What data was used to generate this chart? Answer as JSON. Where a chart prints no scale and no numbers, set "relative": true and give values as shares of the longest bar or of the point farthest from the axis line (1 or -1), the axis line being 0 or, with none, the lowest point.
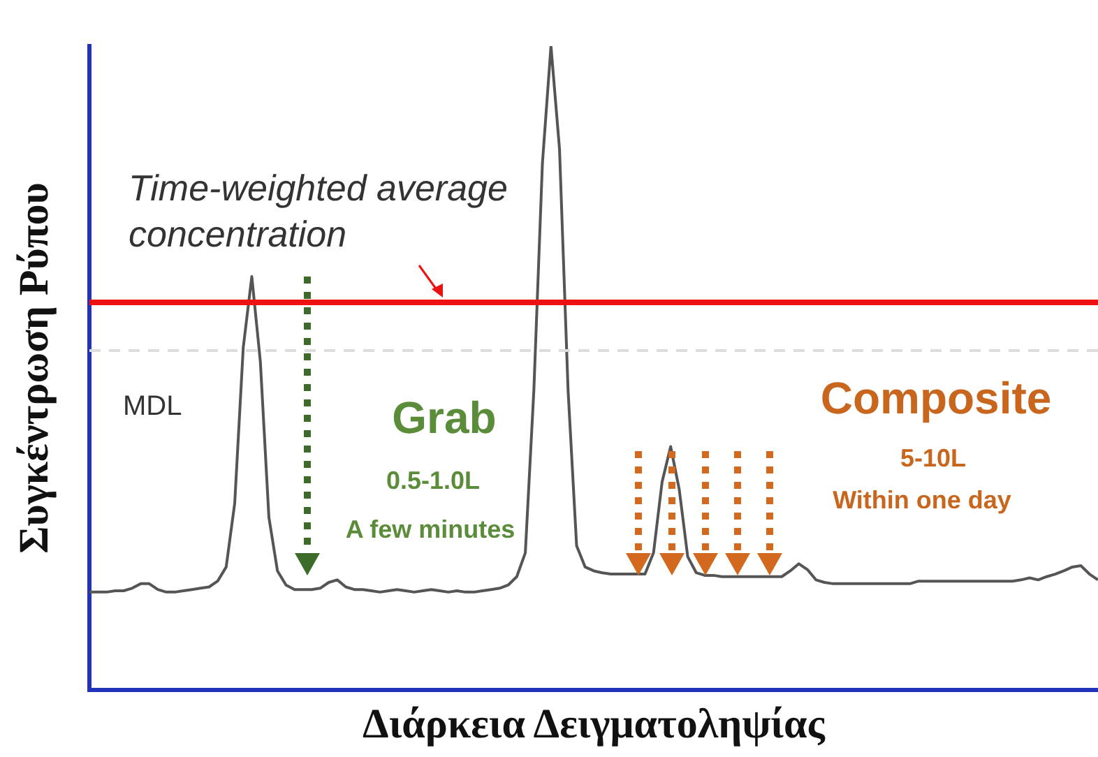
{
  "chart_data": {
    "type": "line",
    "relative": true,
    "xlabel": "Διάρκεια Δειγματοληψίας",
    "ylabel": "Συγκέντρωση Ρύπου",
    "categories": [
      null,
      null,
      null,
      null,
      null,
      null,
      null,
      null,
      null,
      null,
      null,
      null,
      null,
      null,
      null,
      null,
      null,
      null,
      null,
      null,
      null,
      null,
      null,
      null,
      null,
      null,
      null,
      null,
      null,
      null,
      null,
      null,
      null,
      null,
      null,
      null,
      null,
      null,
      null,
      null,
      null,
      null,
      null,
      null,
      null,
      null,
      null,
      null,
      null,
      null,
      null,
      null,
      null,
      null,
      null,
      null,
      null,
      null,
      null,
      null,
      null,
      null,
      null,
      null,
      null,
      null,
      null,
      null,
      null,
      null,
      null,
      null,
      null,
      null,
      null,
      null,
      null,
      null,
      null,
      null,
      null,
      null,
      null,
      null,
      null,
      null,
      null,
      null,
      null,
      null,
      null,
      null,
      null,
      null,
      null,
      null,
      null,
      null,
      null,
      null,
      null,
      null,
      null,
      null,
      null,
      null,
      null,
      null,
      null,
      null,
      null,
      null,
      null,
      null,
      null,
      null,
      null,
      null,
      null
    ],
    "series": [
      {
        "color": "#555555",
        "values": [
          0.152,
          0.152,
          0.152,
          0.154,
          0.154,
          0.158,
          0.165,
          0.165,
          0.156,
          0.152,
          0.152,
          0.154,
          0.156,
          0.158,
          0.16,
          0.169,
          0.191,
          0.29,
          0.532,
          0.642,
          0.51,
          0.268,
          0.185,
          0.163,
          0.156,
          0.156,
          0.156,
          0.158,
          0.167,
          0.171,
          0.16,
          0.156,
          0.156,
          0.154,
          0.152,
          0.154,
          0.156,
          0.154,
          0.152,
          0.154,
          0.156,
          0.154,
          0.152,
          0.154,
          0.152,
          0.152,
          0.154,
          0.156,
          0.158,
          0.163,
          0.176,
          0.213,
          0.466,
          0.818,
          1,
          0.84,
          0.466,
          0.224,
          0.191,
          0.185,
          0.182,
          0.18,
          0.18,
          0.18,
          0.18,
          0.18,
          0.213,
          0.323,
          0.378,
          0.312,
          0.207,
          0.182,
          0.178,
          0.178,
          0.176,
          0.176,
          0.176,
          0.176,
          0.176,
          0.176,
          0.176,
          0.176,
          0.185,
          0.196,
          0.187,
          0.171,
          0.167,
          0.165,
          0.165,
          0.165,
          0.165,
          0.165,
          0.165,
          0.165,
          0.165,
          0.165,
          0.165,
          0.169,
          0.169,
          0.169,
          0.169,
          0.169,
          0.169,
          0.169,
          0.169,
          0.169,
          0.169,
          0.169,
          0.169,
          0.171,
          0.174,
          0.171,
          0.176,
          0.18,
          0.185,
          0.191,
          0.193,
          0.18,
          0.171
        ]
      }
    ],
    "ref_lines": [
      {
        "axis": "y",
        "value": 0.602,
        "label": "Time-weighted average concentration",
        "color": "#ee1111"
      },
      {
        "axis": "y",
        "value": 0.527,
        "label": "MDL",
        "color": "#dddddd",
        "line_style": "dashed"
      }
    ],
    "annotations": [
      "Grab",
      "0.5-1.0L",
      "A few minutes",
      "Composite",
      "5-10L",
      "Within one day"
    ],
    "grid": false,
    "legend": false,
    "marker": "none",
    "line_style": "solid"
  }
}
